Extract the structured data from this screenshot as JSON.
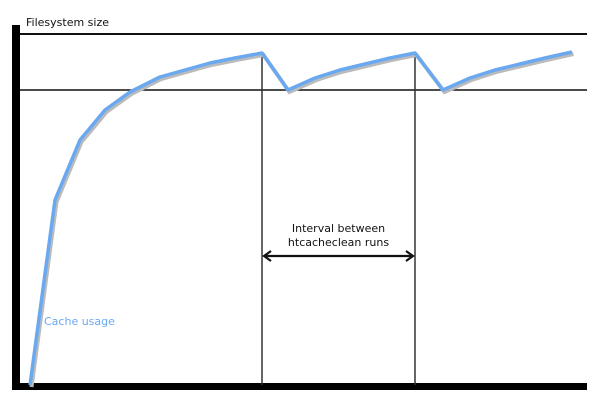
{
  "diagram": {
    "y_axis_label": "Filesystem size",
    "curve_label": "Cache usage",
    "interval_label_line1": "Interval between",
    "interval_label_line2": "htcacheclean runs",
    "curve_color": "#6aa8f0",
    "line_color": "#111111"
  }
}
